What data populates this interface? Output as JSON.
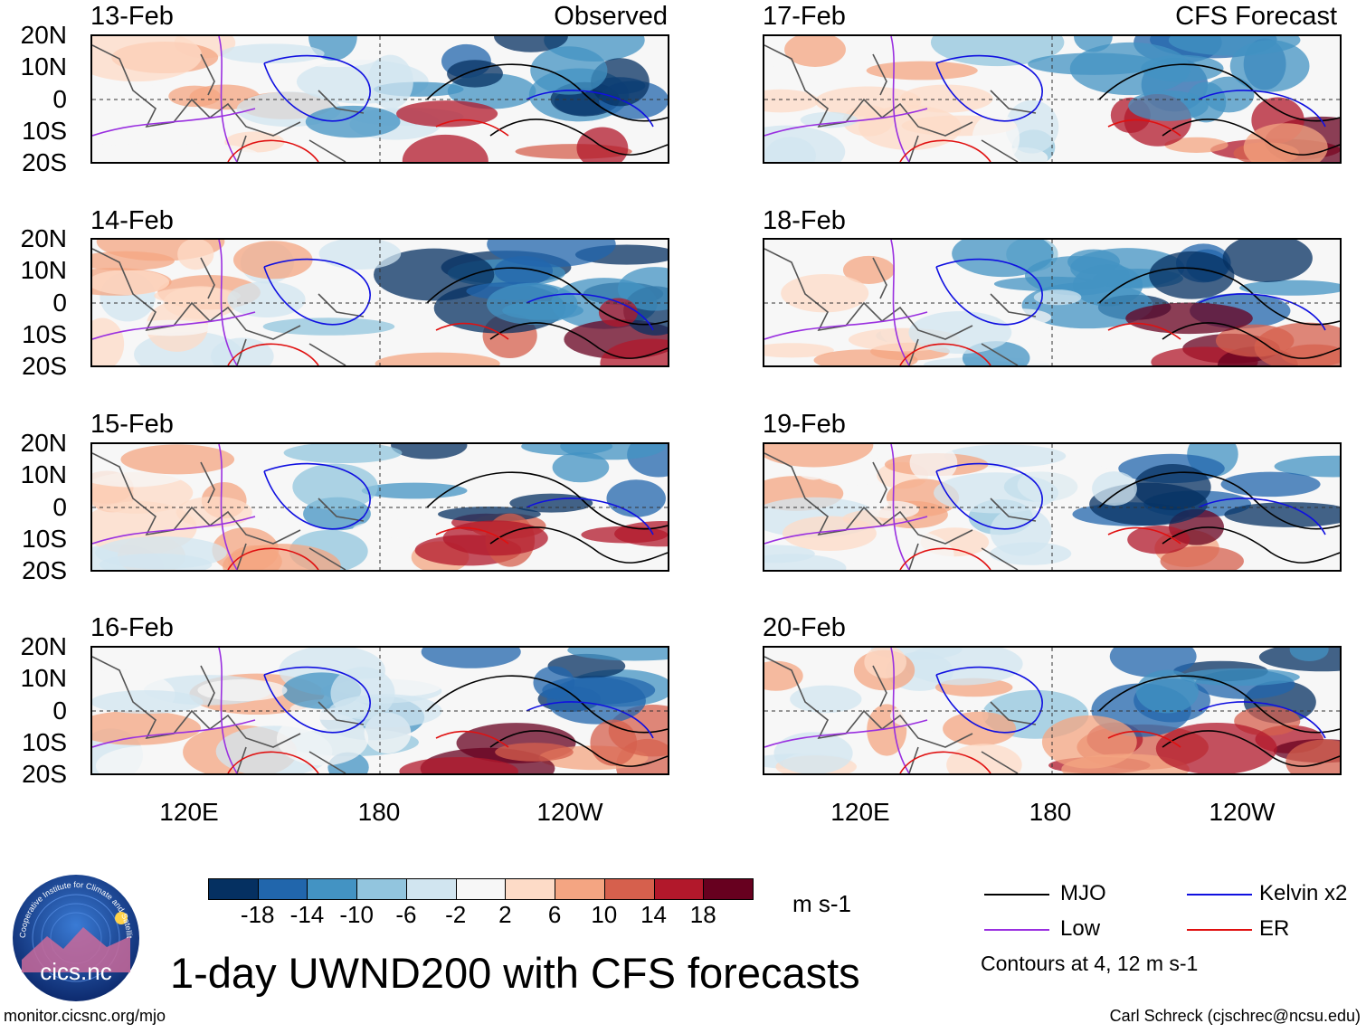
{
  "title": "1-day UWND200 with CFS forecasts",
  "observed_label": "Observed",
  "forecast_label": "CFS Forecast",
  "panels": {
    "left": [
      "13-Feb",
      "14-Feb",
      "15-Feb",
      "16-Feb"
    ],
    "right": [
      "17-Feb",
      "18-Feb",
      "19-Feb",
      "20-Feb"
    ]
  },
  "lat_labels": [
    "20N",
    "10N",
    "0",
    "10S",
    "20S"
  ],
  "lon_labels": [
    "120E",
    "180",
    "120W"
  ],
  "colorbar": {
    "unit": "m s-1",
    "tick_labels": [
      "-18",
      "-14",
      "-10",
      "-6",
      "-2",
      "2",
      "6",
      "10",
      "14",
      "18"
    ],
    "colors": [
      "#053061",
      "#2166ac",
      "#4393c3",
      "#92c5de",
      "#d1e5f0",
      "#f7f7f7",
      "#fddbc7",
      "#f4a582",
      "#d6604d",
      "#b2182b",
      "#67001f"
    ]
  },
  "legend": {
    "mjo": "MJO",
    "kelvin": "Kelvin x2",
    "low": "Low",
    "er": "ER",
    "colors": {
      "mjo": "#000000",
      "kelvin": "#1010e0",
      "low": "#9a30e0",
      "er": "#e01010"
    },
    "note": "Contours at 4, 12 m s-1"
  },
  "logo_text": "cics.nc",
  "logo_ring_text": "Cooperative Institute for Climate and Satellites",
  "footer_left": "monitor.cicsnc.org/mjo",
  "footer_right": "Carl Schreck (cjschrec@ncsu.edu)"
}
